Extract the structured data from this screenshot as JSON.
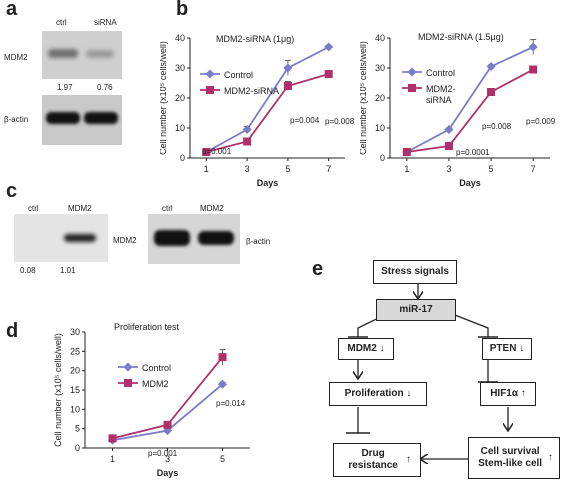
{
  "panels": {
    "a": {
      "letter": "a",
      "lane_labels": [
        "ctrl",
        "siRNA"
      ],
      "protein1": "MDM2",
      "protein2": "β-actin",
      "values": [
        "1.97",
        "0.76"
      ]
    },
    "b": {
      "letter": "b"
    },
    "c": {
      "letter": "c",
      "lane_labels_left": [
        "ctrl",
        "MDM2"
      ],
      "lane_labels_right": [
        "ctrl",
        "MDM2"
      ],
      "protein1": "MDM2",
      "protein2": "β-actin",
      "values": [
        "0.08",
        "1.01"
      ]
    },
    "d": {
      "letter": "d"
    },
    "e": {
      "letter": "e",
      "boxes": {
        "stress": "Stress signals",
        "mir17": "miR-17",
        "mdm2": "MDM2",
        "pten": "PTEN",
        "prolif": "Proliferation",
        "hif": "HIF1α",
        "drug": "Drug resistance",
        "surv": "Cell survival Stem-like cell"
      },
      "arrows": {
        "down": "↓",
        "up": "↑"
      }
    }
  },
  "chart_data": [
    {
      "type": "line",
      "title": "MDM2-siRNA (1μg)",
      "xlabel": "Days",
      "ylabel": "Cell number (x10⁵ cells/well)",
      "x": [
        1,
        3,
        5,
        7
      ],
      "ylim": [
        0,
        40
      ],
      "yticks": [
        0,
        10,
        20,
        30,
        40
      ],
      "series": [
        {
          "name": "Control",
          "values": [
            2,
            9.5,
            30,
            37
          ],
          "errors": [
            0,
            1,
            2.5,
            0.5
          ],
          "color": "#7b7bc8"
        },
        {
          "name": "MDM2-siRNA",
          "values": [
            2,
            5.5,
            24,
            28
          ],
          "errors": [
            0,
            0.5,
            1.5,
            0.5
          ],
          "color": "#b0306a"
        }
      ],
      "annotations": [
        "p=0.001",
        "p=0.004",
        "p=0.008"
      ]
    },
    {
      "type": "line",
      "title": "MDM2-siRNA (1.5μg)",
      "xlabel": "Days",
      "ylabel": "Cell number (x10⁵ cells/well)",
      "x": [
        1,
        3,
        5,
        7
      ],
      "ylim": [
        0,
        40
      ],
      "yticks": [
        0,
        10,
        20,
        30,
        40
      ],
      "series": [
        {
          "name": "Control",
          "values": [
            2,
            9.5,
            30.5,
            37
          ],
          "errors": [
            0,
            0.5,
            0.5,
            2.5
          ],
          "color": "#7b7bc8"
        },
        {
          "name": "MDM2-\nsiRNA",
          "values": [
            2,
            4,
            22,
            29.5
          ],
          "errors": [
            0,
            0.5,
            1,
            0.5
          ],
          "color": "#b0306a"
        }
      ],
      "annotations": [
        "p=0.0001",
        "p=0.008",
        "p=0.009"
      ]
    },
    {
      "type": "line",
      "title": "Proliferation test",
      "xlabel": "Days",
      "ylabel": "Cell number (x10⁵ cells/well)",
      "x": [
        1,
        3,
        5
      ],
      "ylim": [
        0,
        30
      ],
      "yticks": [
        0,
        5,
        10,
        15,
        20,
        25,
        30
      ],
      "series": [
        {
          "name": "Control",
          "values": [
            2,
            4.5,
            16.5
          ],
          "errors": [
            0,
            0.5,
            0.5
          ],
          "color": "#7b7bc8"
        },
        {
          "name": "MDM2",
          "values": [
            2.5,
            6,
            23.5
          ],
          "errors": [
            0,
            0.5,
            2
          ],
          "color": "#b0306a"
        }
      ],
      "annotations": [
        "p=0.001",
        "p=0.014"
      ]
    }
  ]
}
